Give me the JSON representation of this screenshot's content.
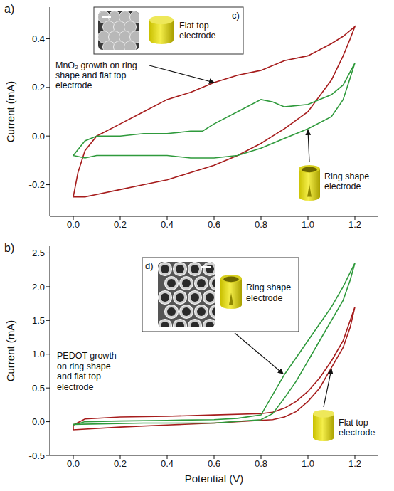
{
  "chart_data": [
    {
      "type": "line",
      "title": "a)",
      "ylabel": "Current (mA)",
      "annotations": [
        "c)",
        "MnO₂ growth on ring shape and flat top electrode"
      ],
      "xlim": [
        -0.1,
        1.3
      ],
      "xticks": [
        {
          "value": 0,
          "label": "0.0"
        },
        0.2,
        0.4,
        0.6,
        0.8,
        {
          "value": 1,
          "label": "1.0"
        },
        1.2
      ],
      "ylim": [
        -0.33,
        0.53
      ],
      "yticks": [
        -0.2,
        {
          "value": 0,
          "label": "0.0"
        },
        0.2,
        0.4
      ],
      "series": [
        {
          "name": "Flat top electrode",
          "color": "#a61c1c",
          "x": [
            0,
            0.02,
            0.05,
            0.1,
            0.2,
            0.3,
            0.4,
            0.5,
            0.6,
            0.7,
            0.8,
            0.9,
            1.0,
            1.1,
            1.15,
            1.2,
            1.18,
            1.15,
            1.1,
            1.0,
            0.9,
            0.85,
            0.8,
            0.7,
            0.6,
            0.5,
            0.4,
            0.3,
            0.2,
            0.1,
            0.05,
            0
          ],
          "values": [
            -0.25,
            -0.15,
            -0.06,
            0.0,
            0.05,
            0.1,
            0.15,
            0.18,
            0.22,
            0.25,
            0.27,
            0.31,
            0.33,
            0.38,
            0.41,
            0.45,
            0.4,
            0.33,
            0.23,
            0.1,
            0.03,
            0.0,
            -0.03,
            -0.08,
            -0.12,
            -0.15,
            -0.18,
            -0.2,
            -0.22,
            -0.24,
            -0.25,
            -0.25
          ]
        },
        {
          "name": "Ring shape electrode",
          "color": "#2f9a3c",
          "x": [
            0,
            0.05,
            0.1,
            0.2,
            0.3,
            0.4,
            0.5,
            0.55,
            0.6,
            0.7,
            0.8,
            0.85,
            0.9,
            1.0,
            1.1,
            1.15,
            1.2,
            1.18,
            1.15,
            1.1,
            1.0,
            0.9,
            0.8,
            0.7,
            0.6,
            0.5,
            0.4,
            0.3,
            0.2,
            0.1,
            0.05,
            0
          ],
          "values": [
            -0.08,
            -0.02,
            0.0,
            0.0,
            0.01,
            0.01,
            0.02,
            0.02,
            0.05,
            0.1,
            0.15,
            0.14,
            0.12,
            0.13,
            0.17,
            0.21,
            0.3,
            0.24,
            0.15,
            0.08,
            0.03,
            -0.01,
            -0.05,
            -0.08,
            -0.09,
            -0.09,
            -0.08,
            -0.08,
            -0.08,
            -0.08,
            -0.09,
            -0.08
          ]
        }
      ]
    },
    {
      "type": "line",
      "title": "b)",
      "xlabel": "Potential (V)",
      "ylabel": "Current (mA)",
      "annotations": [
        "d)",
        "PEDOT growth on ring shape and flat top electrode"
      ],
      "xlim": [
        -0.1,
        1.3
      ],
      "xticks": [
        {
          "value": 0,
          "label": "0.0"
        },
        0.2,
        0.4,
        0.6,
        0.8,
        {
          "value": 1,
          "label": "1.0"
        },
        1.2
      ],
      "ylim": [
        -0.5,
        2.6
      ],
      "yticks": [
        -0.5,
        {
          "value": 0,
          "label": "0.0"
        },
        0.5,
        {
          "value": 1,
          "label": "1.0"
        },
        1.5,
        {
          "value": 2,
          "label": "2.0"
        },
        2.5
      ],
      "series": [
        {
          "name": "Flat top electrode",
          "color": "#a61c1c",
          "x": [
            0,
            0.05,
            0.2,
            0.4,
            0.6,
            0.8,
            0.85,
            0.9,
            0.95,
            1.0,
            1.05,
            1.1,
            1.15,
            1.2,
            1.18,
            1.15,
            1.1,
            1.05,
            1.0,
            0.95,
            0.9,
            0.85,
            0.6,
            0.4,
            0.2,
            0,
            0
          ],
          "values": [
            -0.05,
            0.04,
            0.07,
            0.08,
            0.1,
            0.12,
            0.14,
            0.2,
            0.3,
            0.45,
            0.65,
            0.9,
            1.2,
            1.7,
            1.4,
            1.1,
            0.8,
            0.5,
            0.3,
            0.15,
            0.07,
            0.03,
            -0.02,
            -0.05,
            -0.08,
            -0.12,
            -0.05
          ]
        },
        {
          "name": "Ring shape electrode",
          "color": "#2f9a3c",
          "x": [
            0,
            0.05,
            0.2,
            0.4,
            0.6,
            0.7,
            0.8,
            0.85,
            0.9,
            0.95,
            1.0,
            1.05,
            1.1,
            1.15,
            1.2,
            1.18,
            1.15,
            1.1,
            1.05,
            1.0,
            0.95,
            0.9,
            0.85,
            0.8,
            0.6,
            0.3,
            0,
            0
          ],
          "values": [
            -0.05,
            0.0,
            0.01,
            0.02,
            0.03,
            0.05,
            0.1,
            0.4,
            0.7,
            0.95,
            1.2,
            1.45,
            1.7,
            2.0,
            2.35,
            2.1,
            1.8,
            1.5,
            1.2,
            0.9,
            0.6,
            0.35,
            0.12,
            0.03,
            -0.02,
            -0.02,
            -0.04,
            -0.05
          ]
        }
      ]
    }
  ]
}
